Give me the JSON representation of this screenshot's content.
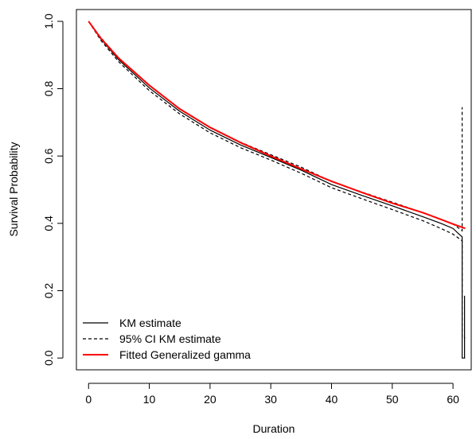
{
  "chart_data": {
    "type": "line",
    "title": "",
    "xlabel": "Duration",
    "ylabel": "Survival Probability",
    "xlim": [
      -2,
      63
    ],
    "ylim": [
      -0.035,
      1.035
    ],
    "xticks": [
      0,
      10,
      20,
      30,
      40,
      50,
      60
    ],
    "yticks": [
      0.0,
      0.2,
      0.4,
      0.6,
      0.8,
      1.0
    ],
    "xtick_labels": [
      "0",
      "10",
      "20",
      "30",
      "40",
      "50",
      "60"
    ],
    "ytick_labels": [
      "0.0",
      "0.2",
      "0.4",
      "0.6",
      "0.8",
      "1.0"
    ],
    "grid": false,
    "legend_position": "bottom-left",
    "legend": [
      {
        "label": "KM estimate",
        "color": "#000000",
        "style": "solid"
      },
      {
        "label": "95% CI KM estimate",
        "color": "#000000",
        "style": "dashed"
      },
      {
        "label": "Fitted Generalized gamma",
        "color": "#ff0000",
        "style": "solid"
      }
    ],
    "series": [
      {
        "name": "KM estimate",
        "color": "#000000",
        "style": "solid",
        "x": [
          0,
          2,
          5,
          10,
          15,
          20,
          25,
          30,
          35,
          40,
          45,
          50,
          55,
          58,
          60,
          61,
          61.5,
          61.5,
          62
        ],
        "y": [
          1.0,
          0.948,
          0.885,
          0.802,
          0.733,
          0.677,
          0.633,
          0.596,
          0.558,
          0.515,
          0.483,
          0.452,
          0.42,
          0.4,
          0.385,
          0.368,
          0.36,
          0.0,
          0.0
        ]
      },
      {
        "name": "95% CI KM estimate (lower)",
        "color": "#000000",
        "style": "dashed",
        "x": [
          0,
          2,
          5,
          10,
          15,
          20,
          25,
          30,
          35,
          40,
          45,
          50,
          55,
          58,
          60,
          61,
          61.5,
          61.5,
          62
        ],
        "y": [
          1.0,
          0.944,
          0.879,
          0.794,
          0.725,
          0.669,
          0.625,
          0.588,
          0.549,
          0.506,
          0.473,
          0.441,
          0.408,
          0.385,
          0.368,
          0.355,
          0.348,
          0.06,
          0.06
        ]
      },
      {
        "name": "95% CI KM estimate (upper)",
        "color": "#000000",
        "style": "dashed",
        "x": [
          0,
          2,
          5,
          10,
          15,
          20,
          25,
          30,
          35,
          40,
          45,
          50,
          55,
          58,
          60,
          61,
          61.5,
          61.5
        ],
        "y": [
          1.0,
          0.952,
          0.891,
          0.81,
          0.741,
          0.685,
          0.641,
          0.604,
          0.567,
          0.524,
          0.493,
          0.463,
          0.432,
          0.412,
          0.398,
          0.385,
          0.378,
          0.745
        ]
      },
      {
        "name": "Fitted Generalized gamma",
        "color": "#ff0000",
        "style": "solid",
        "x": [
          0,
          2,
          5,
          10,
          15,
          20,
          25,
          30,
          35,
          40,
          45,
          50,
          55,
          58,
          60,
          62
        ],
        "y": [
          1.0,
          0.95,
          0.89,
          0.81,
          0.74,
          0.685,
          0.64,
          0.6,
          0.562,
          0.525,
          0.492,
          0.46,
          0.432,
          0.412,
          0.398,
          0.385
        ]
      }
    ],
    "annotations": [
      {
        "type": "segment",
        "color": "#000000",
        "style": "solid",
        "x": [
          61.9,
          61.9
        ],
        "y": [
          0.0,
          0.185
        ]
      }
    ]
  }
}
